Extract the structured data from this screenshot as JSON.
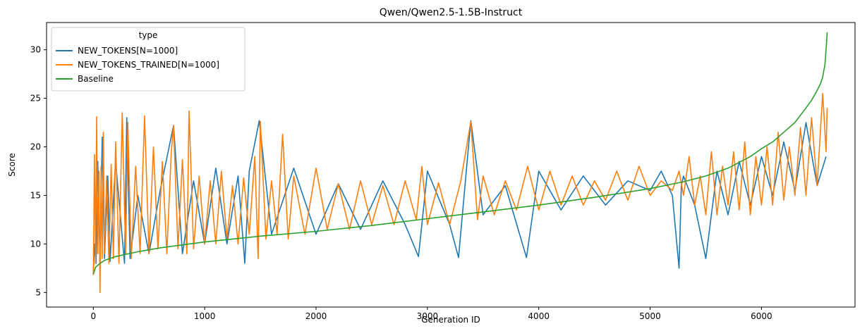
{
  "chart_data": {
    "type": "line",
    "title": "Qwen/Qwen2.5-1.5B-Instruct",
    "xlabel": "Generation ID",
    "ylabel": "Score",
    "xlim": [
      -420,
      6840
    ],
    "ylim": [
      3.5,
      32.8
    ],
    "xticks": [
      0,
      1000,
      2000,
      3000,
      4000,
      5000,
      6000
    ],
    "yticks": [
      5,
      10,
      15,
      20,
      25,
      30
    ],
    "grid": false,
    "legend": {
      "title": "type",
      "placement": "top-left"
    },
    "series": [
      {
        "name": "NEW_TOKENS[N=1000]",
        "color": "#1f77b4",
        "x": [
          0,
          12,
          25,
          40,
          60,
          80,
          100,
          130,
          150,
          200,
          280,
          300,
          330,
          400,
          500,
          600,
          720,
          800,
          900,
          1000,
          1100,
          1200,
          1300,
          1360,
          1400,
          1490,
          1600,
          1800,
          2000,
          2200,
          2400,
          2600,
          2800,
          2920,
          3000,
          3200,
          3280,
          3390,
          3500,
          3700,
          3890,
          4000,
          4200,
          4400,
          4600,
          4800,
          5000,
          5100,
          5200,
          5260,
          5280,
          5300,
          5400,
          5500,
          5600,
          5700,
          5800,
          5900,
          6000,
          6100,
          6200,
          6300,
          6400,
          6500,
          6580
        ],
        "values": [
          7.0,
          10.0,
          8.0,
          18.5,
          8.0,
          21.0,
          8.5,
          17.0,
          8.2,
          18.5,
          8.0,
          23.0,
          8.5,
          15.0,
          9.0,
          15.5,
          22.2,
          9.0,
          16.5,
          10.0,
          17.8,
          10.0,
          17.0,
          8.0,
          17.5,
          22.7,
          11.0,
          17.8,
          11.0,
          16.2,
          11.5,
          16.5,
          12.0,
          8.7,
          17.5,
          12.0,
          8.6,
          22.7,
          13.0,
          16.0,
          8.6,
          17.5,
          13.5,
          17.0,
          14.0,
          16.5,
          15.5,
          17.5,
          15.0,
          7.5,
          16.0,
          17.0,
          14.0,
          8.5,
          17.5,
          13.0,
          18.5,
          14.0,
          19.0,
          15.0,
          20.5,
          15.5,
          22.5,
          16.0,
          19.0
        ]
      },
      {
        "name": "NEW_TOKENS_TRAINED[N=1000]",
        "color": "#ff7f0e",
        "x": [
          0,
          10,
          20,
          30,
          40,
          50,
          60,
          70,
          80,
          90,
          100,
          120,
          140,
          160,
          180,
          200,
          230,
          260,
          290,
          310,
          340,
          380,
          420,
          460,
          500,
          540,
          580,
          620,
          660,
          700,
          720,
          760,
          800,
          840,
          860,
          900,
          950,
          1000,
          1050,
          1100,
          1150,
          1200,
          1250,
          1300,
          1350,
          1400,
          1450,
          1480,
          1500,
          1550,
          1600,
          1650,
          1700,
          1750,
          1800,
          1900,
          2000,
          2100,
          2200,
          2300,
          2400,
          2500,
          2600,
          2700,
          2800,
          2900,
          2950,
          3000,
          3100,
          3200,
          3300,
          3390,
          3450,
          3500,
          3600,
          3700,
          3800,
          3900,
          4000,
          4100,
          4200,
          4300,
          4400,
          4500,
          4600,
          4700,
          4800,
          4900,
          5000,
          5100,
          5200,
          5260,
          5300,
          5350,
          5400,
          5450,
          5500,
          5550,
          5600,
          5650,
          5700,
          5750,
          5800,
          5850,
          5900,
          5950,
          6000,
          6050,
          6100,
          6150,
          6200,
          6250,
          6300,
          6350,
          6400,
          6450,
          6500,
          6550,
          6580,
          6590
        ],
        "values": [
          6.8,
          19.2,
          8.0,
          23.1,
          9.0,
          17.5,
          5.0,
          18.0,
          8.5,
          21.5,
          9.0,
          17.0,
          8.0,
          18.2,
          8.5,
          20.5,
          8.0,
          23.5,
          9.0,
          22.5,
          8.5,
          18.0,
          9.0,
          23.2,
          9.0,
          20.0,
          9.5,
          18.5,
          9.0,
          19.5,
          22.2,
          9.5,
          18.7,
          9.0,
          23.7,
          9.5,
          17.0,
          10.0,
          16.5,
          10.0,
          17.5,
          10.5,
          16.0,
          10.0,
          16.8,
          11.0,
          19.0,
          8.5,
          22.6,
          10.5,
          16.5,
          11.0,
          21.3,
          10.5,
          17.0,
          11.0,
          17.8,
          11.5,
          16.2,
          11.5,
          16.5,
          12.0,
          16.0,
          12.0,
          16.5,
          12.5,
          18.0,
          12.0,
          16.3,
          12.0,
          16.5,
          22.6,
          12.5,
          17.0,
          13.0,
          16.5,
          13.5,
          18.0,
          13.5,
          17.5,
          14.0,
          17.0,
          14.0,
          16.5,
          14.5,
          17.5,
          14.5,
          18.0,
          15.0,
          16.5,
          15.5,
          17.5,
          15.0,
          19.0,
          14.0,
          17.0,
          13.0,
          19.5,
          13.0,
          18.0,
          14.0,
          19.5,
          13.5,
          20.5,
          13.0,
          19.0,
          14.0,
          20.0,
          14.0,
          21.5,
          14.5,
          20.0,
          15.0,
          22.0,
          15.0,
          23.0,
          16.0,
          25.5,
          19.5,
          24.0
        ]
      },
      {
        "name": "Baseline",
        "color": "#2ca02c",
        "x": [
          0,
          20,
          50,
          100,
          200,
          400,
          600,
          1000,
          1500,
          2000,
          2500,
          3000,
          3500,
          4000,
          4500,
          5000,
          5300,
          5500,
          5700,
          5900,
          6000,
          6100,
          6200,
          6300,
          6400,
          6450,
          6500,
          6530,
          6550,
          6570,
          6580,
          6590
        ],
        "values": [
          6.9,
          7.6,
          7.9,
          8.3,
          8.7,
          9.2,
          9.6,
          10.2,
          10.8,
          11.3,
          11.9,
          12.6,
          13.3,
          14.0,
          14.8,
          15.7,
          16.4,
          17.0,
          17.8,
          19.0,
          19.8,
          20.5,
          21.5,
          22.5,
          24.0,
          24.8,
          25.8,
          26.5,
          27.2,
          28.5,
          30.0,
          31.8
        ]
      }
    ]
  }
}
